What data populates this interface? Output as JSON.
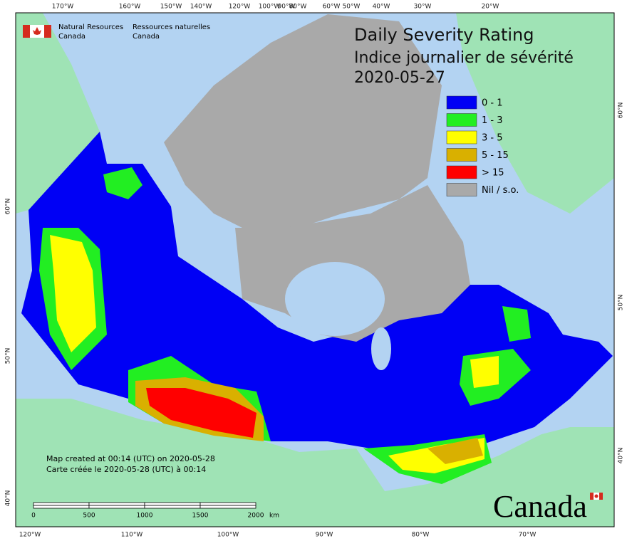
{
  "header": {
    "title_en": "Daily Severity Rating",
    "title_fr": "Indice journalier de sévérité",
    "date": "2020-05-27"
  },
  "agency": {
    "en_line1": "Natural Resources",
    "en_line2": "Canada",
    "fr_line1": "Ressources naturelles",
    "fr_line2": "Canada"
  },
  "legend": [
    {
      "label": "0 - 1",
      "color": "#0000f5"
    },
    {
      "label": "1 - 3",
      "color": "#22ee22"
    },
    {
      "label": "3 - 5",
      "color": "#ffff00"
    },
    {
      "label": "5 - 15",
      "color": "#d9b000"
    },
    {
      "label": "> 15",
      "color": "#ff0000"
    },
    {
      "label": "Nil / s.o.",
      "color": "#a9a9a9"
    }
  ],
  "footer": {
    "created_en": "Map created at 00:14 (UTC) on 2020-05-28",
    "created_fr": "Carte créée le 2020-05-28 (UTC) à 00:14"
  },
  "scale_bar": {
    "labels": [
      "0",
      "500",
      "1000",
      "1500",
      "2000"
    ],
    "unit": "km"
  },
  "graticule": {
    "top": [
      "170°W",
      "160°W",
      "150°W",
      "140°W",
      "120°W",
      "100°W",
      "90°W",
      "80°W",
      "60°W",
      "50°W",
      "40°W",
      "30°W",
      "20°W"
    ],
    "bottom": [
      "120°W",
      "110°W",
      "100°W",
      "90°W",
      "80°W",
      "70°W"
    ],
    "left": [
      "60°N",
      "50°N",
      "40°N"
    ],
    "right": [
      "60°N",
      "50°N",
      "40°N"
    ]
  },
  "wordmark": "Canada"
}
